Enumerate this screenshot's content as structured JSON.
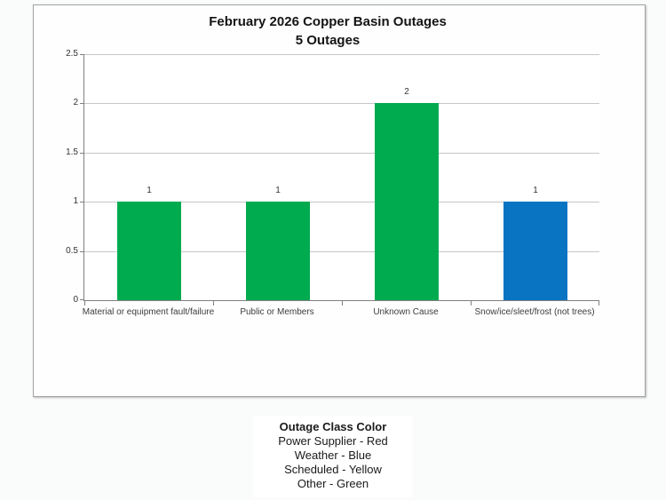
{
  "chart_data": {
    "type": "bar",
    "title": "February 2026 Copper Basin Outages",
    "subtitle": "5 Outages",
    "categories": [
      "Material or equipment fault/failure",
      "Public or Members",
      "Unknown Cause",
      "Snow/ice/sleet/frost (not trees)"
    ],
    "values": [
      1,
      1,
      2,
      1
    ],
    "data_labels": [
      "1",
      "1",
      "2",
      "1"
    ],
    "bar_colors": [
      "#00AB50",
      "#00AB50",
      "#00AB50",
      "#0874C2"
    ],
    "ylim": [
      0,
      2.5
    ],
    "ytick_values": [
      0,
      0.5,
      1,
      1.5,
      2,
      2.5
    ],
    "ytick_labels": [
      "0",
      "0.5",
      "1",
      "1.5",
      "2",
      "2.5"
    ],
    "xlabel": "",
    "ylabel": "",
    "grid": true,
    "legend_position": "below-chart"
  },
  "legend": {
    "title": "Outage Class Color",
    "entries": [
      "Power Supplier - Red",
      "Weather - Blue",
      "Scheduled - Yellow",
      "Other - Green"
    ]
  },
  "colors": {
    "bar_green": "#00AB50",
    "bar_blue": "#0874C2",
    "gridline": "#c6c6c6",
    "axis": "#808080"
  }
}
